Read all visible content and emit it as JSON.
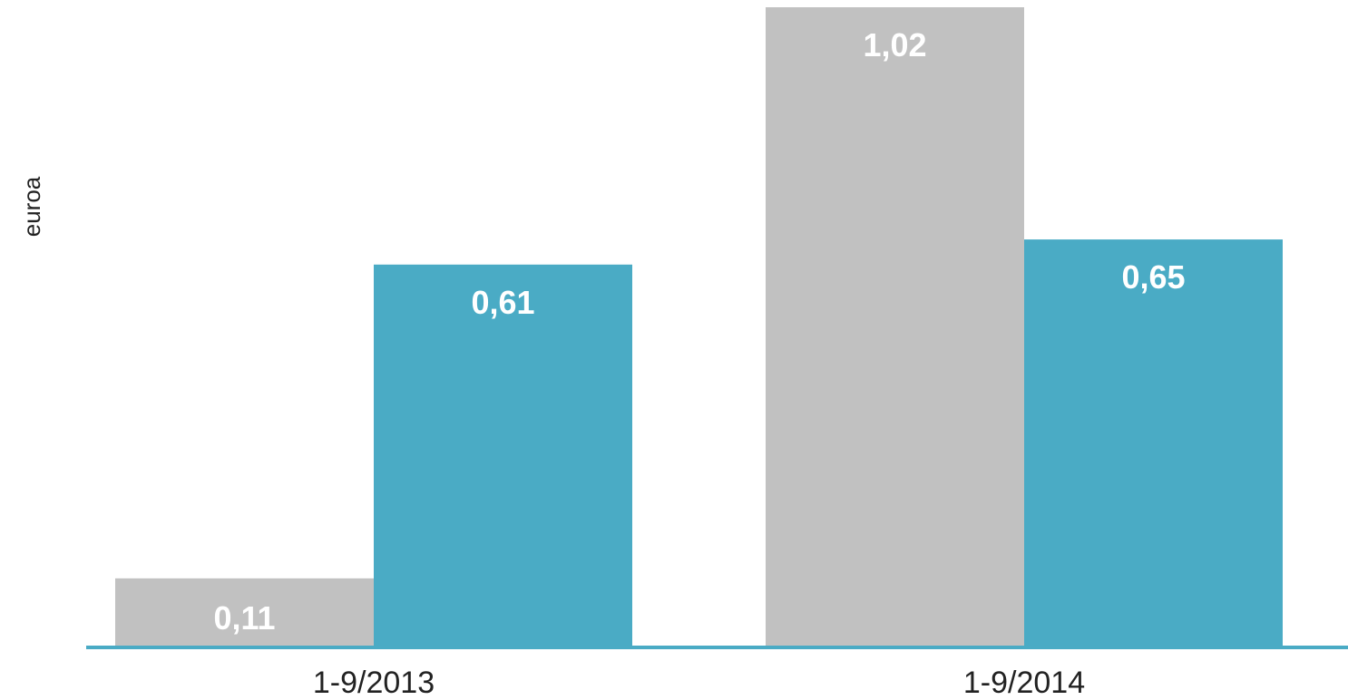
{
  "chart_data": {
    "type": "bar",
    "title": "",
    "xlabel": "",
    "ylabel": "euroa",
    "categories": [
      "1-9/2013",
      "1-9/2014"
    ],
    "series": [
      {
        "values": [
          0.11,
          1.02
        ],
        "labels": [
          "0,11",
          "1,02"
        ],
        "color": "#c1c1c1"
      },
      {
        "values": [
          0.61,
          0.65
        ],
        "labels": [
          "0,61",
          "0,65"
        ],
        "color": "#4aabc5"
      }
    ],
    "ylim": [
      0,
      1.02
    ],
    "axis_color": "#4aabc5",
    "grid": false,
    "legend": "none"
  }
}
